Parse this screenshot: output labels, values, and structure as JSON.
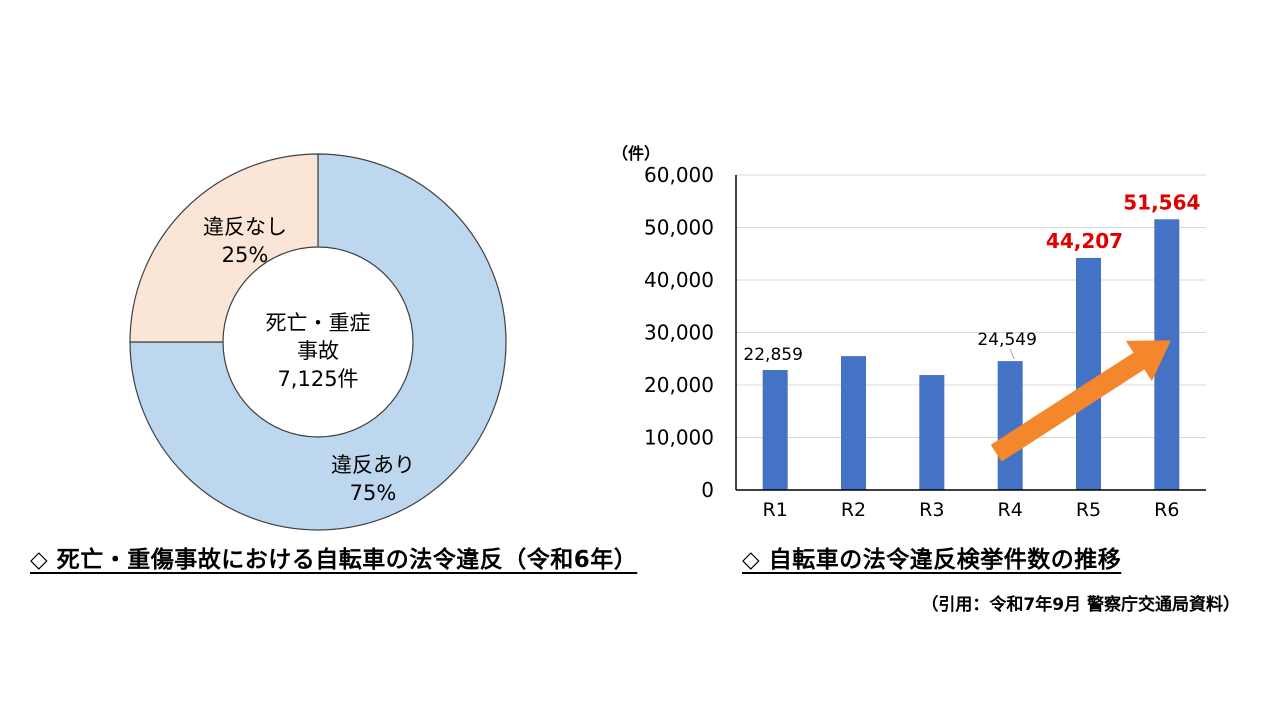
{
  "colors": {
    "donut_violation": "#bdd7ee",
    "donut_no_violation": "#fbe5d6",
    "bar": "#4472c4",
    "highlight_label": "#e00000",
    "arrow": "#f4862b",
    "axis": "#000000",
    "grid": "#d9d9d9"
  },
  "chart_data": [
    {
      "type": "pie",
      "variant": "donut",
      "center_label": [
        "死亡・重症",
        "事故",
        "7,125件"
      ],
      "slices": [
        {
          "label": "違反あり",
          "value": 75,
          "value_label": "75%"
        },
        {
          "label": "違反なし",
          "value": 25,
          "value_label": "25%"
        }
      ],
      "title": "◇ 死亡・重傷事故における自転車の法令違反（令和6年）"
    },
    {
      "type": "bar",
      "categories": [
        "R1",
        "R2",
        "R3",
        "R4",
        "R5",
        "R6"
      ],
      "values": [
        22859,
        25500,
        21900,
        24549,
        44207,
        51564
      ],
      "data_labels": [
        "22,859",
        "",
        "",
        "24,549",
        "44,207",
        "51,564"
      ],
      "highlighted_labels": [
        "44,207",
        "51,564"
      ],
      "ylabel": "（件）",
      "ylim": [
        0,
        60000
      ],
      "yticks": [
        "0",
        "10,000",
        "20,000",
        "30,000",
        "40,000",
        "50,000",
        "60,000"
      ],
      "ytick_values": [
        0,
        10000,
        20000,
        30000,
        40000,
        50000,
        60000
      ],
      "grid": true,
      "annotation": "upward trend arrow",
      "title": "◇ 自転車の法令違反検挙件数の推移"
    }
  ],
  "captions": {
    "left": "◇ 死亡・重傷事故における自転車の法令違反（令和6年）",
    "right": "◇ 自転車の法令違反検挙件数の推移"
  },
  "source": "（引用：令和7年9月 警察庁交通局資料）"
}
